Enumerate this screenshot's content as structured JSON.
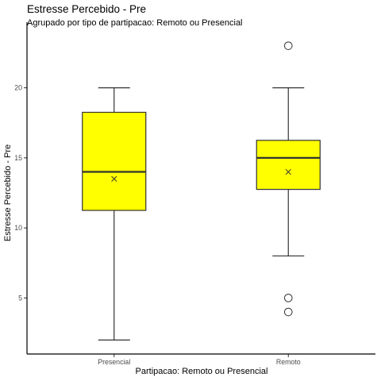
{
  "chart_data": {
    "type": "boxplot",
    "title": "Estresse Percebido - Pre",
    "subtitle": "Agrupado por tipo de partipacao: Remoto ou Presencial",
    "xlabel": "Partipacao: Remoto ou Presencial",
    "ylabel": "Estresse Percebido - Pre",
    "ylim": [
      1.0,
      24.0
    ],
    "yticks": [
      5,
      10,
      15,
      20
    ],
    "categories": [
      "Presencial",
      "Remoto"
    ],
    "boxes": [
      {
        "category": "Presencial",
        "whisker_low": 2,
        "q1": 11.25,
        "median": 14,
        "q3": 18.25,
        "whisker_high": 20,
        "mean": 13.5,
        "outliers": []
      },
      {
        "category": "Remoto",
        "whisker_low": 8,
        "q1": 12.75,
        "median": 15,
        "q3": 16.25,
        "whisker_high": 20,
        "mean": 14,
        "outliers": [
          23,
          5,
          4
        ]
      }
    ],
    "box_fill": "#ffff00",
    "line_color": "#333333",
    "mean_marker": "x",
    "grid": false
  }
}
